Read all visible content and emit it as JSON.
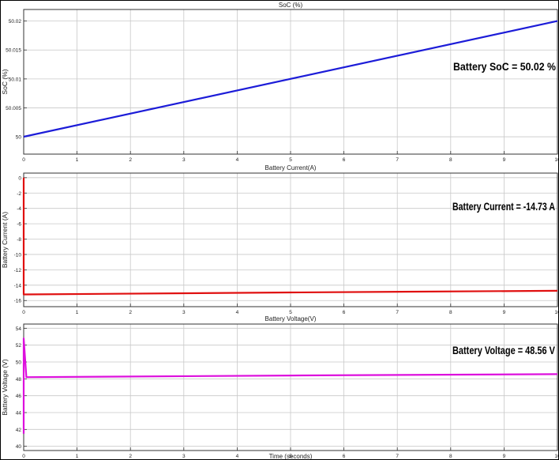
{
  "chart_data": [
    {
      "type": "line",
      "title": "SoC (%)",
      "ylabel": "SoC (%)",
      "xlim": [
        0,
        10
      ],
      "ylim": [
        49.997,
        50.022
      ],
      "grid": true,
      "xticks": [
        "0",
        "1",
        "2",
        "3",
        "4",
        "5",
        "6",
        "7",
        "8",
        "9",
        "10"
      ],
      "yticks": [
        50,
        50.005,
        50.01,
        50.015,
        50.02
      ],
      "ytick_labels": [
        "50",
        "50.005",
        "50.01",
        "50.015",
        "50.02"
      ],
      "series": [
        {
          "color": "#1c1cd8",
          "x": [
            0,
            10
          ],
          "y": [
            50.0,
            50.02
          ]
        }
      ],
      "annotation": "Battery SoC = 50.02 %"
    },
    {
      "type": "line",
      "title": "Battery Current(A)",
      "ylabel": "Battery Current (A)",
      "xlim": [
        0,
        10
      ],
      "ylim": [
        -16.8,
        0.6
      ],
      "grid": true,
      "xticks": [
        "0",
        "1",
        "2",
        "3",
        "4",
        "5",
        "6",
        "7",
        "8",
        "9",
        "10"
      ],
      "yticks": [
        0,
        -2,
        -4,
        -6,
        -8,
        -10,
        -12,
        -14,
        -16
      ],
      "ytick_labels": [
        "0",
        "-2",
        "-4",
        "-6",
        "-8",
        "-10",
        "-12",
        "-14",
        "-16"
      ],
      "series": [
        {
          "color": "#e01010",
          "x": [
            0,
            0,
            0.05,
            5,
            10
          ],
          "y": [
            0,
            -15.2,
            -15.2,
            -14.95,
            -14.73
          ]
        }
      ],
      "annotation": "Battery Current = -14.73 A"
    },
    {
      "type": "line",
      "title": "Battery Voltage(V)",
      "ylabel": "Battery Voltage (V)",
      "xlabel": "Time (seconds)",
      "xlim": [
        0,
        10
      ],
      "ylim": [
        39.5,
        54.5
      ],
      "grid": true,
      "xticks": [
        "0",
        "1",
        "2",
        "3",
        "4",
        "5",
        "6",
        "7",
        "8",
        "9",
        "10"
      ],
      "yticks": [
        40,
        42,
        44,
        46,
        48,
        50,
        52,
        54
      ],
      "ytick_labels": [
        "40",
        "42",
        "44",
        "46",
        "48",
        "50",
        "52",
        "54"
      ],
      "series": [
        {
          "color": "#dd10dd",
          "x": [
            0,
            0,
            0.05,
            5,
            10
          ],
          "y": [
            41.5,
            52.8,
            48.2,
            48.4,
            48.56
          ]
        }
      ],
      "annotation": "Battery Voltage = 48.56 V"
    }
  ]
}
